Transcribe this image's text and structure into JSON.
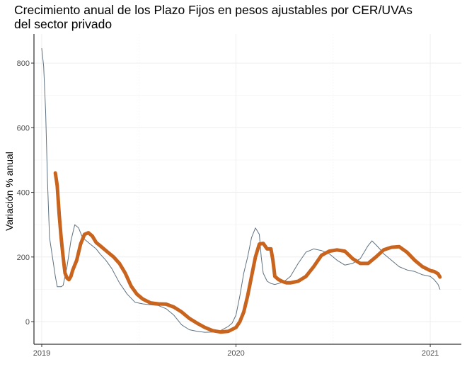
{
  "chart_data": {
    "type": "line",
    "title_lines": [
      "Crecimiento anual de los Plazo Fijos en pesos ajustables por CER/UVAs",
      "del sector privado"
    ],
    "xlabel": "",
    "ylabel": "Variación % anual",
    "x_range": [
      2018.96,
      2021.16
    ],
    "y_range": [
      -70,
      890
    ],
    "y_ticks": [
      0,
      200,
      400,
      600,
      800
    ],
    "x_ticks": [
      {
        "value": 2019,
        "label": "2019"
      },
      {
        "value": 2020,
        "label": "2020"
      },
      {
        "value": 2021,
        "label": "2021"
      }
    ],
    "grid": true,
    "colors": {
      "thin_series": "#5e7180",
      "thick_series": "#c8641e",
      "grid": "#ebebeb",
      "axis": "#000000"
    },
    "series": [
      {
        "style": "thin",
        "x": [
          2019.0,
          2019.01,
          2019.02,
          2019.03,
          2019.04,
          2019.06,
          2019.07,
          2019.08,
          2019.1,
          2019.11,
          2019.13,
          2019.15,
          2019.17,
          2019.19,
          2019.21,
          2019.23,
          2019.25,
          2019.28,
          2019.3,
          2019.33,
          2019.36,
          2019.4,
          2019.44,
          2019.48,
          2019.52,
          2019.56,
          2019.6,
          2019.64,
          2019.68,
          2019.72,
          2019.76,
          2019.8,
          2019.84,
          2019.88,
          2019.92,
          2019.96,
          2019.98,
          2020.0,
          2020.02,
          2020.04,
          2020.06,
          2020.08,
          2020.1,
          2020.12,
          2020.13,
          2020.14,
          2020.16,
          2020.18,
          2020.2,
          2020.22,
          2020.25,
          2020.28,
          2020.32,
          2020.36,
          2020.4,
          2020.44,
          2020.48,
          2020.52,
          2020.56,
          2020.6,
          2020.64,
          2020.68,
          2020.7,
          2020.72,
          2020.74,
          2020.76,
          2020.8,
          2020.84,
          2020.88,
          2020.92,
          2020.96,
          2021.0,
          2021.02,
          2021.04,
          2021.05
        ],
        "y": [
          845,
          790,
          650,
          430,
          260,
          180,
          140,
          108,
          108,
          112,
          170,
          250,
          300,
          290,
          260,
          250,
          240,
          225,
          210,
          190,
          165,
          120,
          85,
          60,
          55,
          52,
          50,
          40,
          20,
          -10,
          -25,
          -30,
          -33,
          -32,
          -28,
          -15,
          -5,
          20,
          80,
          150,
          200,
          260,
          290,
          270,
          200,
          150,
          125,
          118,
          115,
          118,
          125,
          140,
          180,
          215,
          225,
          220,
          210,
          190,
          175,
          180,
          195,
          235,
          250,
          238,
          225,
          210,
          190,
          170,
          160,
          155,
          145,
          140,
          130,
          115,
          100
        ]
      },
      {
        "style": "thick",
        "x": [
          2019.07,
          2019.08,
          2019.09,
          2019.1,
          2019.11,
          2019.12,
          2019.13,
          2019.14,
          2019.15,
          2019.16,
          2019.18,
          2019.2,
          2019.22,
          2019.24,
          2019.26,
          2019.28,
          2019.31,
          2019.34,
          2019.37,
          2019.4,
          2019.43,
          2019.46,
          2019.49,
          2019.52,
          2019.56,
          2019.6,
          2019.64,
          2019.68,
          2019.72,
          2019.76,
          2019.8,
          2019.84,
          2019.88,
          2019.92,
          2019.96,
          2020.0,
          2020.02,
          2020.04,
          2020.06,
          2020.08,
          2020.1,
          2020.12,
          2020.14,
          2020.16,
          2020.18,
          2020.19,
          2020.2,
          2020.22,
          2020.24,
          2020.26,
          2020.28,
          2020.32,
          2020.36,
          2020.4,
          2020.44,
          2020.48,
          2020.52,
          2020.56,
          2020.6,
          2020.64,
          2020.68,
          2020.72,
          2020.76,
          2020.8,
          2020.84,
          2020.88,
          2020.92,
          2020.96,
          2021.0,
          2021.02,
          2021.04,
          2021.05
        ],
        "y": [
          460,
          420,
          330,
          260,
          200,
          150,
          135,
          130,
          140,
          160,
          190,
          240,
          270,
          275,
          265,
          245,
          230,
          215,
          200,
          180,
          150,
          110,
          85,
          70,
          58,
          55,
          54,
          45,
          30,
          10,
          -5,
          -18,
          -28,
          -32,
          -30,
          -18,
          0,
          30,
          80,
          140,
          200,
          240,
          242,
          225,
          225,
          190,
          140,
          130,
          124,
          120,
          120,
          125,
          140,
          170,
          205,
          218,
          222,
          218,
          195,
          180,
          180,
          200,
          222,
          230,
          232,
          215,
          190,
          170,
          158,
          155,
          148,
          138
        ]
      }
    ]
  }
}
